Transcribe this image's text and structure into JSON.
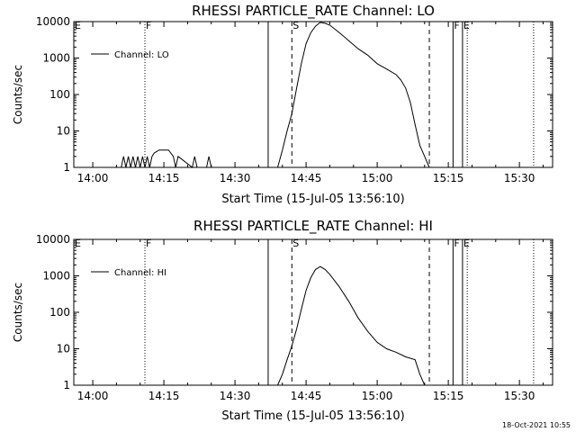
{
  "timestamp": "18-Oct-2021 10:55",
  "chart_data": [
    {
      "type": "line",
      "title": "RHESSI PARTICLE_RATE Channel: LO",
      "xlabel": "Start Time (15-Jul-05 13:56:10)",
      "ylabel": "Counts/sec",
      "yscale": "log",
      "ylim": [
        1,
        10000
      ],
      "y_ticks": [
        "1",
        "10",
        "100",
        "1000",
        "10000"
      ],
      "x_ticks": [
        "14:00",
        "14:15",
        "14:30",
        "14:45",
        "15:00",
        "15:15",
        "15:30"
      ],
      "legend": "Channel: LO",
      "legend_position": "top-left",
      "markers": [
        {
          "label": "E",
          "time": "13:56",
          "style": "none"
        },
        {
          "label": "F",
          "time": "14:11",
          "style": "dotted"
        },
        {
          "label": "",
          "time": "14:37",
          "style": "solid"
        },
        {
          "label": "S",
          "time": "14:42",
          "style": "dashed"
        },
        {
          "label": "",
          "time": "15:11",
          "style": "dashed"
        },
        {
          "label": "F",
          "time": "15:16",
          "style": "solid"
        },
        {
          "label": "E",
          "time": "15:18",
          "style": "solid"
        },
        {
          "label": "",
          "time": "15:19",
          "style": "dotted"
        },
        {
          "label": "",
          "time": "15:33",
          "style": "dotted"
        }
      ],
      "series": [
        {
          "x": [
            "14:06",
            "14:06.5",
            "14:07",
            "14:07.5",
            "14:08",
            "14:08.5",
            "14:09",
            "14:09.5",
            "14:10",
            "14:10.5",
            "14:11",
            "14:11.5",
            "14:12",
            "14:12.5",
            "14:13",
            "14:14",
            "14:15",
            "14:16",
            "14:17",
            "14:17.5",
            "14:18",
            "14:21",
            "14:21.5",
            "14:22",
            "14:24",
            "14:24.5",
            "14:25",
            "14:39",
            "14:40",
            "14:41",
            "14:42",
            "14:43",
            "14:44",
            "14:45",
            "14:46",
            "14:47",
            "14:48",
            "14:49",
            "14:50",
            "14:52",
            "14:54",
            "14:56",
            "14:58",
            "15:00",
            "15:02",
            "15:04",
            "15:05",
            "15:06",
            "15:07",
            "15:08",
            "15:09",
            "15:10",
            "15:11"
          ],
          "y": [
            1,
            2,
            1,
            2,
            1,
            2,
            1,
            2,
            1,
            2,
            1,
            2,
            1,
            2,
            2.5,
            3,
            3,
            3,
            2,
            1,
            2,
            1,
            2,
            1,
            1,
            2,
            1,
            1,
            3,
            10,
            30,
            150,
            700,
            2500,
            5000,
            7500,
            9500,
            9000,
            8000,
            5000,
            3000,
            1800,
            1200,
            700,
            500,
            350,
            250,
            150,
            60,
            15,
            4,
            2,
            1
          ]
        }
      ]
    },
    {
      "type": "line",
      "title": "RHESSI PARTICLE_RATE Channel: HI",
      "xlabel": "Start Time (15-Jul-05 13:56:10)",
      "ylabel": "Counts/sec",
      "yscale": "log",
      "ylim": [
        1,
        10000
      ],
      "y_ticks": [
        "1",
        "10",
        "100",
        "1000",
        "10000"
      ],
      "x_ticks": [
        "14:00",
        "14:15",
        "14:30",
        "14:45",
        "15:00",
        "15:15",
        "15:30"
      ],
      "legend": "Channel: HI",
      "legend_position": "top-left",
      "markers": [
        {
          "label": "E",
          "time": "13:56",
          "style": "none"
        },
        {
          "label": "F",
          "time": "14:11",
          "style": "dotted"
        },
        {
          "label": "",
          "time": "14:37",
          "style": "solid"
        },
        {
          "label": "S",
          "time": "14:42",
          "style": "dashed"
        },
        {
          "label": "",
          "time": "15:11",
          "style": "dashed"
        },
        {
          "label": "F",
          "time": "15:16",
          "style": "solid"
        },
        {
          "label": "E",
          "time": "15:18",
          "style": "solid"
        },
        {
          "label": "",
          "time": "15:19",
          "style": "dotted"
        },
        {
          "label": "",
          "time": "15:33",
          "style": "dotted"
        }
      ],
      "series": [
        {
          "x": [
            "14:39",
            "14:40",
            "14:41",
            "14:42",
            "14:43",
            "14:44",
            "14:45",
            "14:46",
            "14:47",
            "14:48",
            "14:49",
            "14:50",
            "14:52",
            "14:54",
            "14:56",
            "14:58",
            "15:00",
            "15:02",
            "15:04",
            "15:06",
            "15:08",
            "15:09",
            "15:10"
          ],
          "y": [
            1,
            2,
            5,
            12,
            35,
            120,
            400,
            900,
            1500,
            1800,
            1500,
            1100,
            500,
            200,
            70,
            30,
            15,
            10,
            8,
            6,
            5,
            2,
            1
          ]
        }
      ]
    }
  ]
}
